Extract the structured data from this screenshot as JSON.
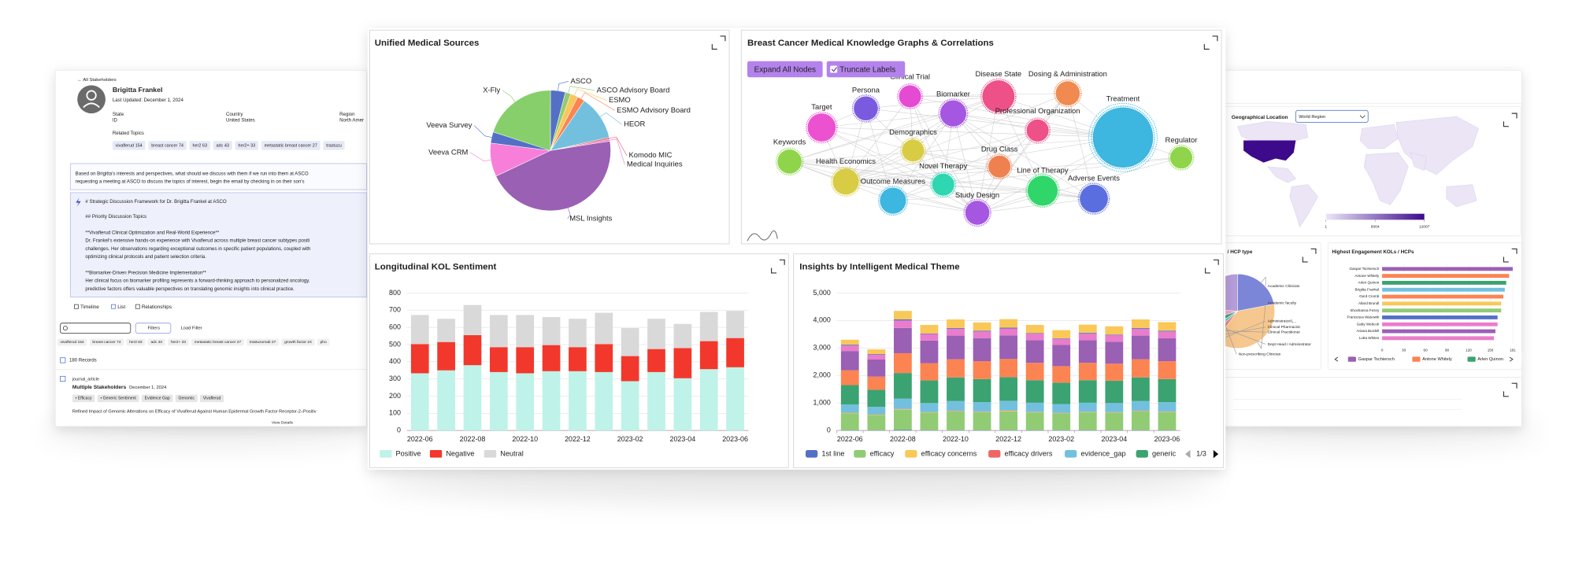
{
  "left_panel": {
    "back": "← All Stakeholders",
    "name": "Brigitta Frankel",
    "updated": "Last Updated: December 1, 2024",
    "fields": [
      {
        "label": "State",
        "value": "ID"
      },
      {
        "label": "Country",
        "value": "United States"
      },
      {
        "label": "Region",
        "value": "North Amer"
      }
    ],
    "related_label": "Related Topics",
    "topics": [
      "vivaflerud 154",
      "breast cancer 74",
      "her2 63",
      "adc 43",
      "her2+ 33",
      "metastatic breast cancer 27",
      "trastuzu"
    ],
    "prompt": [
      "Based on Brigitta's interests and perspectives, what should we discuss with them if we run into them at ASCO",
      "requesting a meeting at ASCO to discuss the topics of interest, begin the email by checking in on their son's"
    ],
    "response": [
      "# Strategic Discussion Framework for Dr. Brigitta Frankel at ASCO",
      "## Priority Discussion Topics",
      "**Vivaflerud Clinical Optimization and Real-World Experience**",
      "Dr. Frankel's extensive hands-on experience with Vivaflerud across multiple breast cancer subtypes positi",
      "challenges. Her observations regarding exceptional outcomes in specific patient populations, coupled with",
      "optimizing clinical protocols and patient selection criteria.",
      "**Biomarker-Driven Precision Medicine Implementation**",
      "Her clinical focus on biomarker profiling represents a forward-thinking approach to personalized oncology.",
      "predictive factors offers valuable perspectives on translating genomic insights into clinical practice."
    ],
    "tabs": [
      "Timeline",
      "List",
      "Relationships"
    ],
    "filters": "Filters",
    "load_filter": "Load Filter",
    "filter_chips": [
      "vivaflerud 154",
      "breast cancer 74",
      "her2 63",
      "adc 43",
      "her2+ 33",
      "metastatic breast cancer 27",
      "trastuzumab 27",
      "growth factor 24",
      "pho"
    ],
    "records": "180 Records",
    "item": {
      "type": "journal_article",
      "author": "Multiple Stakeholders",
      "date": "December 1, 2024",
      "tags": [
        "• Efficacy",
        "• Generic Sentiment",
        "Evidence Gap",
        "Genomic",
        "Vivaflerud"
      ],
      "title": "Refined Impact of Genomic Alterations on Efficacy of Vivaflerud Against Human Epidermal Growth Factor Receptor-2–Positiv",
      "link": "View Details"
    }
  },
  "right_panel": {
    "geo_title": "Geographical Location",
    "geo_select": "World Region",
    "scale": [
      1,
      6004,
      12007
    ]
  },
  "chart_data": [
    {
      "type": "pie",
      "title": "Unified Medical Sources",
      "categories": [
        "ASCO",
        "ASCO Advisory Board",
        "ESMO",
        "ESMO Advisory Board",
        "HEOR",
        "Komodo MIC",
        "Medical Inquiries",
        "MSL Insights",
        "Veeva CRM",
        "Veeva Survey",
        "X-Fly"
      ],
      "values": [
        4,
        1.5,
        2,
        2,
        12,
        0.5,
        0.5,
        45.5,
        9,
        3,
        20
      ],
      "colors": [
        "#5470c6",
        "#91cc75",
        "#fac858",
        "#fc8452",
        "#73c0de",
        "#ee6666",
        "#ea7ccc",
        "#9a60b4",
        "#f77fd9",
        "#5470c6",
        "#86cf6a"
      ]
    },
    {
      "type": "network",
      "title": "Breast Cancer Medical Knowledge Graphs & Correlations",
      "buttons": [
        "Expand All Nodes",
        "Truncate Labels"
      ],
      "nodes": [
        {
          "label": "Clinical Trial",
          "color": "#e44ad2"
        },
        {
          "label": "Persona",
          "color": "#7a5be0"
        },
        {
          "label": "Disease State",
          "color": "#ee5088"
        },
        {
          "label": "Dosing & Administration",
          "color": "#f08a50"
        },
        {
          "label": "Biomarker",
          "color": "#a657e2"
        },
        {
          "label": "Target",
          "color": "#ec52d0"
        },
        {
          "label": "Professional Organization",
          "color": "#ee5088"
        },
        {
          "label": "Treatment",
          "color": "#3db6e0"
        },
        {
          "label": "Demographics",
          "color": "#d9cc45"
        },
        {
          "label": "Keywords",
          "color": "#8fd44a"
        },
        {
          "label": "Regulator",
          "color": "#8fd44a"
        },
        {
          "label": "Drug Class",
          "color": "#ef8050"
        },
        {
          "label": "Health Economics",
          "color": "#d9cc45"
        },
        {
          "label": "Novel Therapy",
          "color": "#2fd6b2"
        },
        {
          "label": "Line of Therapy",
          "color": "#2fd66a"
        },
        {
          "label": "Outcome Measures",
          "color": "#3db6e0"
        },
        {
          "label": "Adverse Events",
          "color": "#5b6ee0"
        },
        {
          "label": "Study Design",
          "color": "#a657e2"
        }
      ]
    },
    {
      "type": "bar",
      "stacked": true,
      "title": "Longitudinal KOL Sentiment",
      "categories": [
        "2022-06",
        null,
        "2022-08",
        null,
        "2022-10",
        null,
        "2022-12",
        null,
        "2023-02",
        null,
        "2023-04",
        null,
        "2023-06"
      ],
      "series": [
        {
          "name": "Positive",
          "color": "#bff2e8",
          "values": [
            333,
            350,
            380,
            340,
            333,
            345,
            345,
            340,
            287,
            340,
            304,
            357,
            368
          ]
        },
        {
          "name": "Negative",
          "color": "#f2382c",
          "values": [
            170,
            165,
            175,
            145,
            152,
            152,
            140,
            163,
            146,
            134,
            176,
            163,
            170
          ]
        },
        {
          "name": "Neutral",
          "color": "#d9d9d9",
          "values": [
            169,
            135,
            175,
            187,
            187,
            163,
            165,
            182,
            163,
            176,
            140,
            170,
            158
          ]
        }
      ],
      "ylim": [
        0,
        800
      ],
      "yticks": [
        0,
        100,
        200,
        300,
        400,
        500,
        600,
        700,
        800
      ],
      "grid": true
    },
    {
      "type": "bar",
      "stacked": true,
      "title": "Insights by Intelligent Medical Theme",
      "categories": [
        "2022-06",
        null,
        "2022-08",
        null,
        "2022-10",
        null,
        "2022-12",
        null,
        "2023-02",
        null,
        "2023-04",
        null,
        "2023-06"
      ],
      "series": [
        {
          "name": "1st line",
          "color": "#5470c6",
          "values": [
            10,
            10,
            20,
            10,
            10,
            10,
            10,
            10,
            10,
            10,
            10,
            10,
            10
          ]
        },
        {
          "name": "efficacy",
          "color": "#91cc75",
          "values": [
            620,
            560,
            730,
            640,
            690,
            660,
            690,
            650,
            610,
            650,
            640,
            690,
            660
          ]
        },
        {
          "name": "efficacy concerns",
          "color": "#fac858",
          "values": [
            10,
            10,
            20,
            10,
            10,
            10,
            20,
            10,
            10,
            10,
            10,
            10,
            10
          ]
        },
        {
          "name": "efficacy drivers",
          "color": "#ee6666",
          "values": [
            10,
            10,
            10,
            10,
            10,
            10,
            10,
            10,
            10,
            10,
            10,
            10,
            10
          ]
        },
        {
          "name": "evidence_gap",
          "color": "#73c0de",
          "values": [
            300,
            270,
            380,
            330,
            350,
            340,
            350,
            330,
            320,
            330,
            330,
            350,
            340
          ]
        },
        {
          "name": "generic",
          "color": "#3ba272",
          "values": [
            700,
            620,
            930,
            820,
            860,
            840,
            860,
            820,
            780,
            820,
            810,
            860,
            840
          ]
        },
        {
          "color": "#fc8452",
          "values": [
            540,
            480,
            720,
            630,
            660,
            650,
            660,
            630,
            600,
            630,
            620,
            660,
            650
          ]
        },
        {
          "color": "#9a60b4",
          "values": [
            700,
            620,
            920,
            820,
            860,
            840,
            860,
            820,
            770,
            820,
            800,
            860,
            840
          ]
        },
        {
          "color": "#ea7ccc",
          "values": [
            200,
            180,
            270,
            240,
            250,
            240,
            250,
            240,
            220,
            240,
            240,
            250,
            240
          ]
        },
        {
          "color": "#5470c6",
          "values": [
            30,
            20,
            40,
            20,
            30,
            30,
            30,
            20,
            20,
            30,
            20,
            30,
            30
          ]
        },
        {
          "color": "#fac858",
          "values": [
            180,
            170,
            310,
            310,
            310,
            300,
            310,
            300,
            300,
            300,
            300,
            310,
            310
          ]
        }
      ],
      "legend_page": "1/3",
      "ylim": [
        0,
        5000
      ],
      "yticks": [
        0,
        {
          "value": 1000,
          "label": "1,000"
        },
        {
          "value": 2000,
          "label": "2,000"
        },
        {
          "value": 3000,
          "label": "3,000"
        },
        {
          "value": 4000,
          "label": "4,000"
        },
        {
          "value": 5000,
          "label": "5,000"
        }
      ],
      "grid": true
    },
    {
      "type": "pie",
      "title": "/ HCP type",
      "categories": [
        "Academic Clinician",
        "Academic faculty",
        "Administrator/L...",
        "Clinical Pharmacist",
        "Clinical Practitioner",
        "Dept Head / Administrator",
        "Non-prescribing Clinician"
      ],
      "values": [
        22,
        38,
        3,
        3,
        4,
        6,
        24
      ],
      "colors": [
        "#7b86d8",
        "#f6c78e",
        "#f08080",
        "#66cccc",
        "#3ba272",
        "#f5a3c9",
        "#b59dd9"
      ]
    },
    {
      "type": "bar",
      "orientation": "horizontal",
      "title": "Highest Engagement KOLs / HCPs",
      "categories": [
        "Gaspar Tschiersch",
        "Antone Whitely",
        "Arlen Quinon",
        "Brigitta Frankel",
        "Gerd Cromb",
        "Allard Brundl",
        "Shoshanna Fezey",
        "Francesca Wasowik",
        "Gaby Webcok",
        "Ariana Burdell",
        "Lotta Whites"
      ],
      "values": [
        181,
        176,
        172,
        170,
        168,
        165,
        165,
        160,
        160,
        157,
        155
      ],
      "colors": [
        "#9a60b4",
        "#fc8452",
        "#3ba272",
        "#73c0de",
        "#fc8452",
        "#fac858",
        "#91cc75",
        "#5470c6",
        "#ea7ccc",
        "#9a60b4",
        "#ea7ccc"
      ],
      "xlim": [
        0,
        181
      ],
      "xticks": [
        0,
        30,
        60,
        90,
        120,
        150,
        181
      ]
    }
  ]
}
